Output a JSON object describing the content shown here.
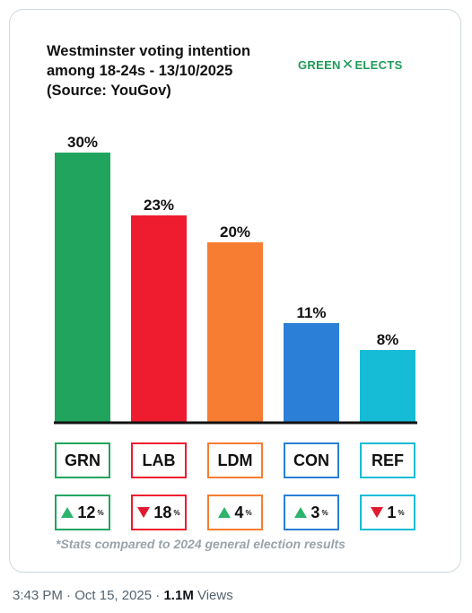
{
  "post": {
    "time": "3:43 PM",
    "separator": " · ",
    "date": "Oct 15, 2025",
    "views_count": "1.1M",
    "views_label": " Views"
  },
  "logo": {
    "left": "GREEN",
    "mark": "✕",
    "right": "ELECTS",
    "color": "#1e9a58",
    "icon": "x-mark-icon"
  },
  "footnote": "*Stats compared to 2024 general election results",
  "chart_data": {
    "type": "bar",
    "title": "Westminster voting intention\namong 18-24s - 13/10/2025\n(Source: YouGov)",
    "categories": [
      "GRN",
      "LAB",
      "LDM",
      "CON",
      "REF"
    ],
    "values": [
      30,
      23,
      20,
      11,
      8
    ],
    "value_labels": [
      "30%",
      "23%",
      "20%",
      "11%",
      "8%"
    ],
    "colors": [
      "#21a55e",
      "#ee1c2e",
      "#f77d32",
      "#2b7fd6",
      "#16bcd6"
    ],
    "ylim": [
      0,
      30
    ],
    "grid": false,
    "changes": [
      {
        "direction": "up",
        "value": "12",
        "unit": "%"
      },
      {
        "direction": "down",
        "value": "18",
        "unit": "%"
      },
      {
        "direction": "up",
        "value": "4",
        "unit": "%"
      },
      {
        "direction": "up",
        "value": "3",
        "unit": "%"
      },
      {
        "direction": "down",
        "value": "1",
        "unit": "%"
      }
    ]
  }
}
